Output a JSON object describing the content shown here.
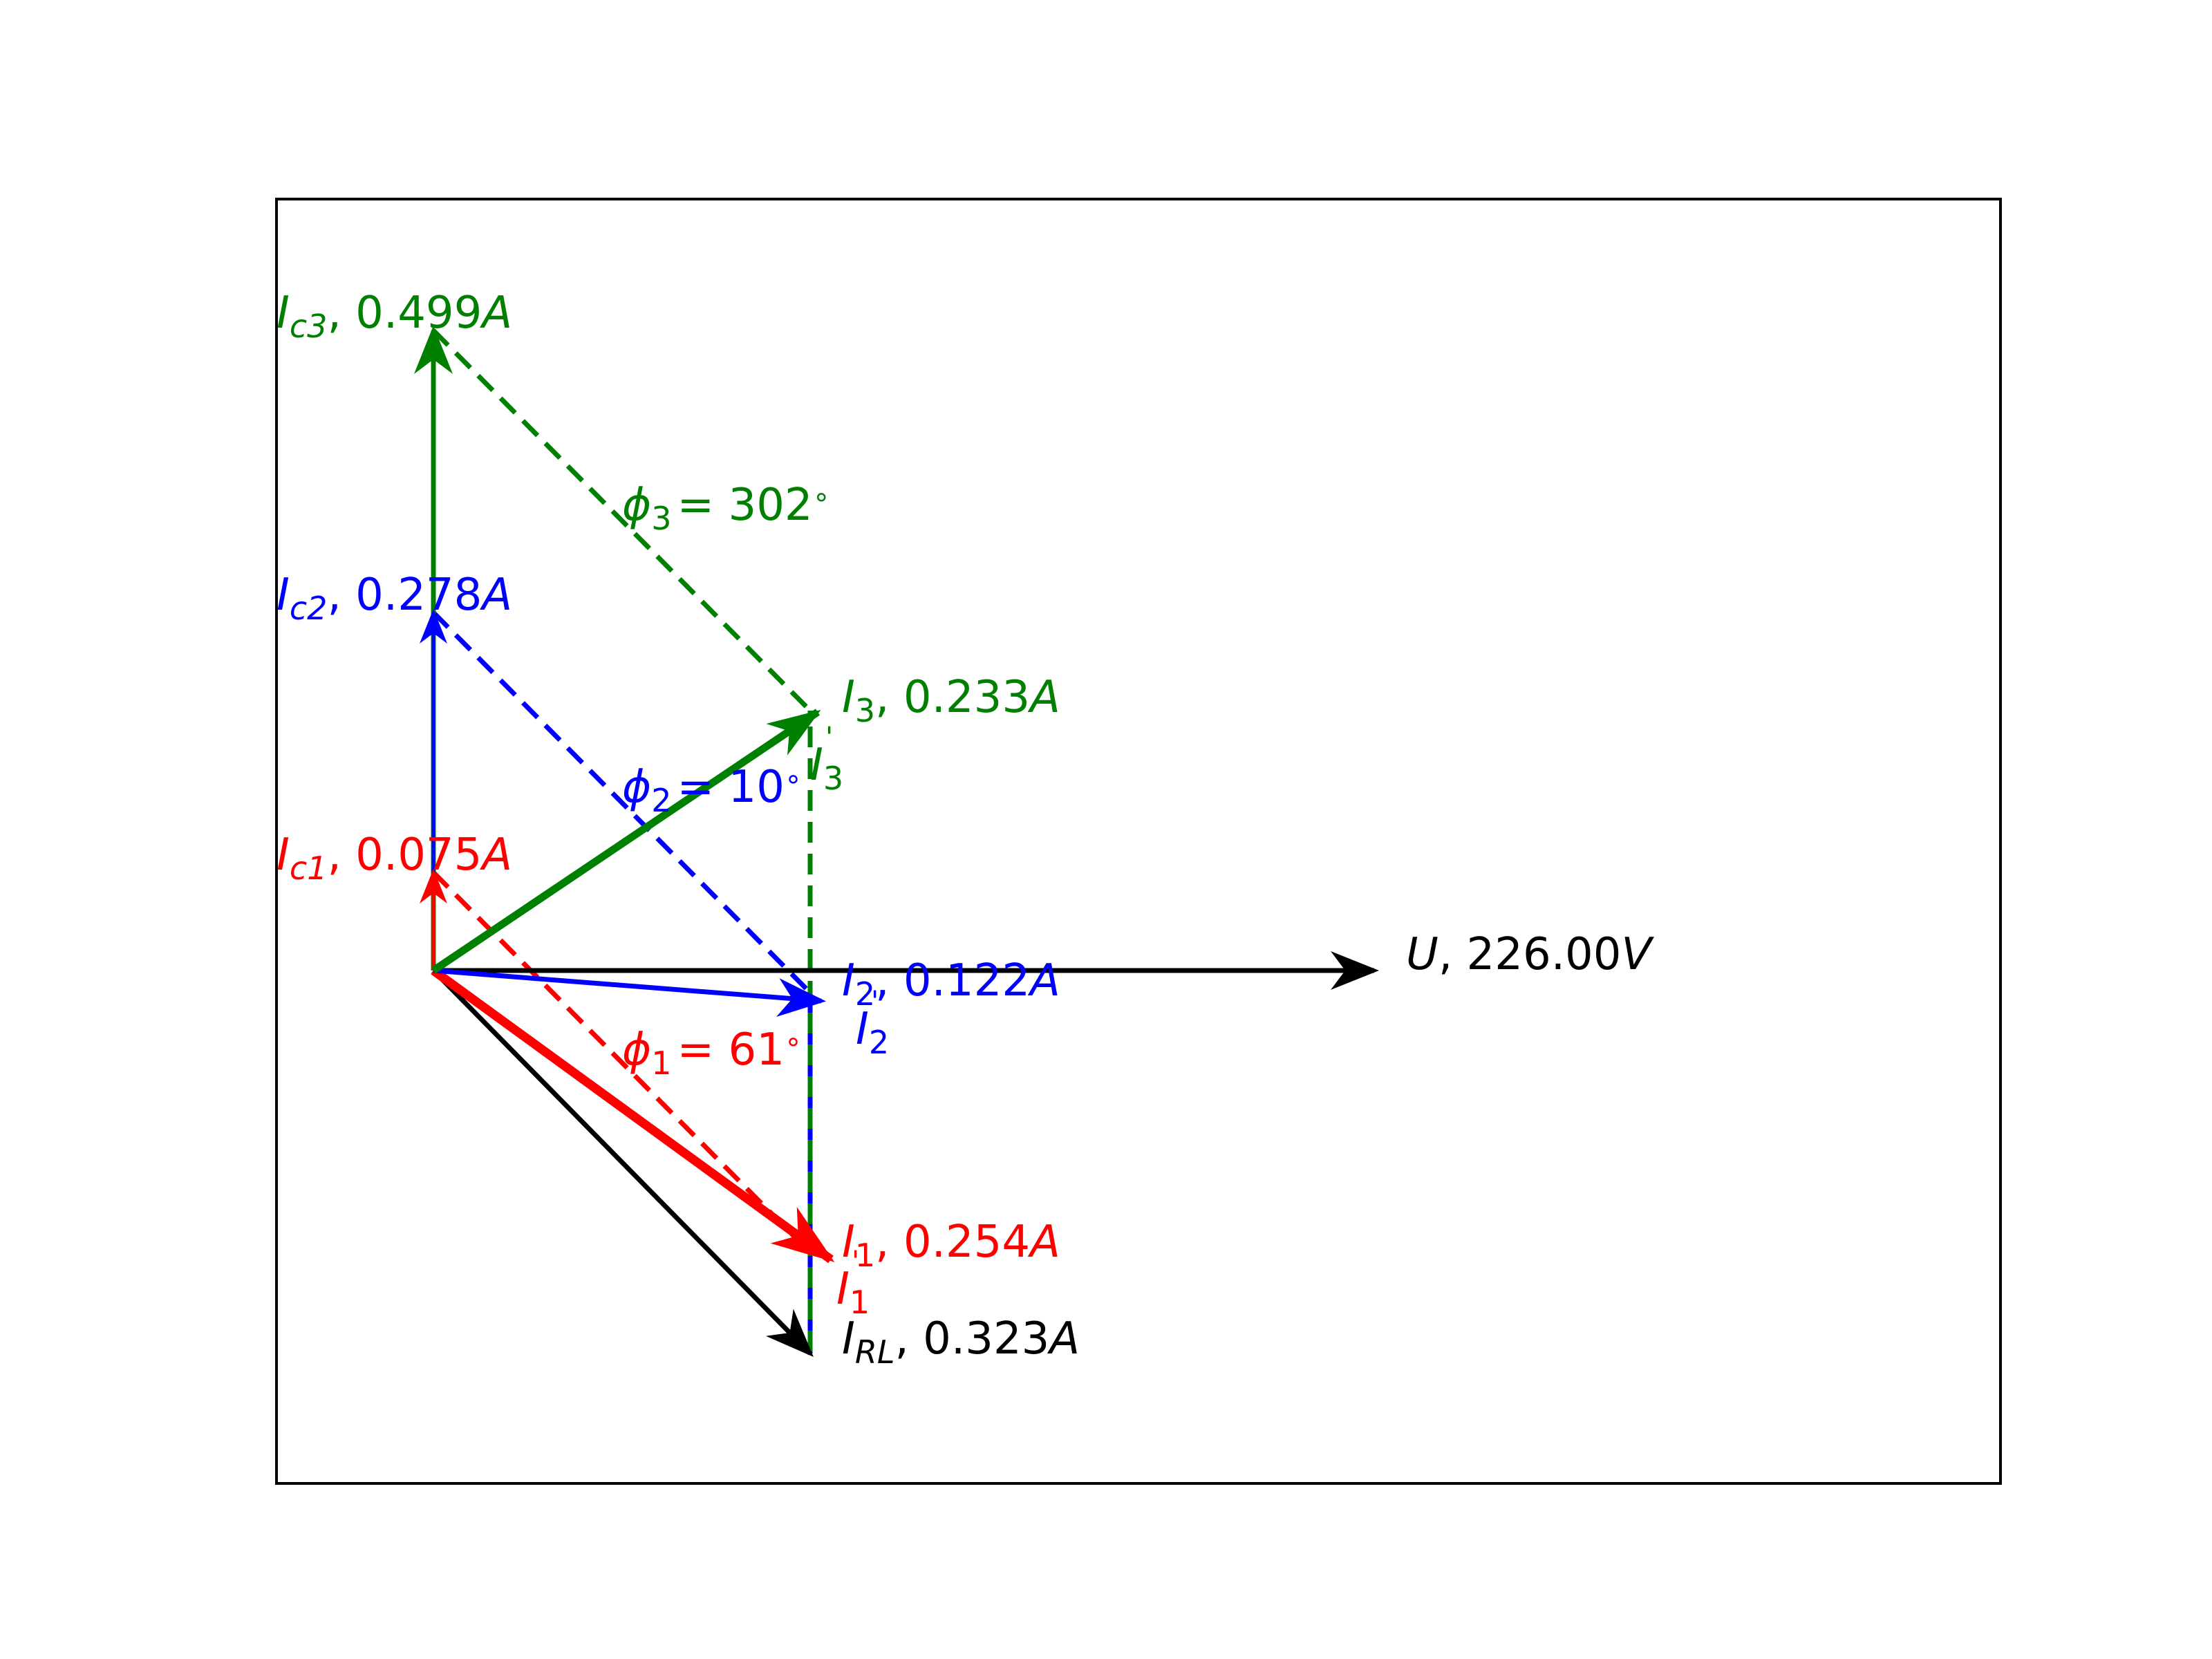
{
  "colors": {
    "ref": "#000000",
    "case1": "#ff0000",
    "case2": "#0000ff",
    "case3": "#008000",
    "frame": "#000000"
  },
  "voltage": {
    "symbol": "U",
    "value": "226.00",
    "unit": "V"
  },
  "i_rl": {
    "symbol": "I",
    "sub": "RL",
    "value": "0.323",
    "unit": "A"
  },
  "case1": {
    "ic": {
      "symbol": "I",
      "sub": "c1",
      "value": "0.075",
      "unit": "A"
    },
    "i": {
      "symbol": "I",
      "sub": "1",
      "value": "0.254",
      "unit": "A"
    },
    "i_prime": {
      "symbol": "I",
      "sub": "1"
    },
    "phi": {
      "symbol": "ϕ",
      "sub": "1",
      "text": "= 61",
      "deg": "∘"
    }
  },
  "case2": {
    "ic": {
      "symbol": "I",
      "sub": "c2",
      "value": "0.278",
      "unit": "A"
    },
    "i": {
      "symbol": "I",
      "sub": "2",
      "value": "0.122",
      "unit": "A"
    },
    "i_prime": {
      "symbol": "I",
      "sub": "2"
    },
    "phi": {
      "symbol": "ϕ",
      "sub": "2",
      "text": "= 10",
      "deg": "∘"
    }
  },
  "case3": {
    "ic": {
      "symbol": "I",
      "sub": "c3",
      "value": "0.499",
      "unit": "A"
    },
    "i": {
      "symbol": "I",
      "sub": "3",
      "value": "0.233",
      "unit": "A"
    },
    "i_prime": {
      "symbol": "I",
      "sub": "3"
    },
    "phi": {
      "symbol": "ϕ",
      "sub": "3",
      "text": "= 302",
      "deg": "∘"
    }
  }
}
